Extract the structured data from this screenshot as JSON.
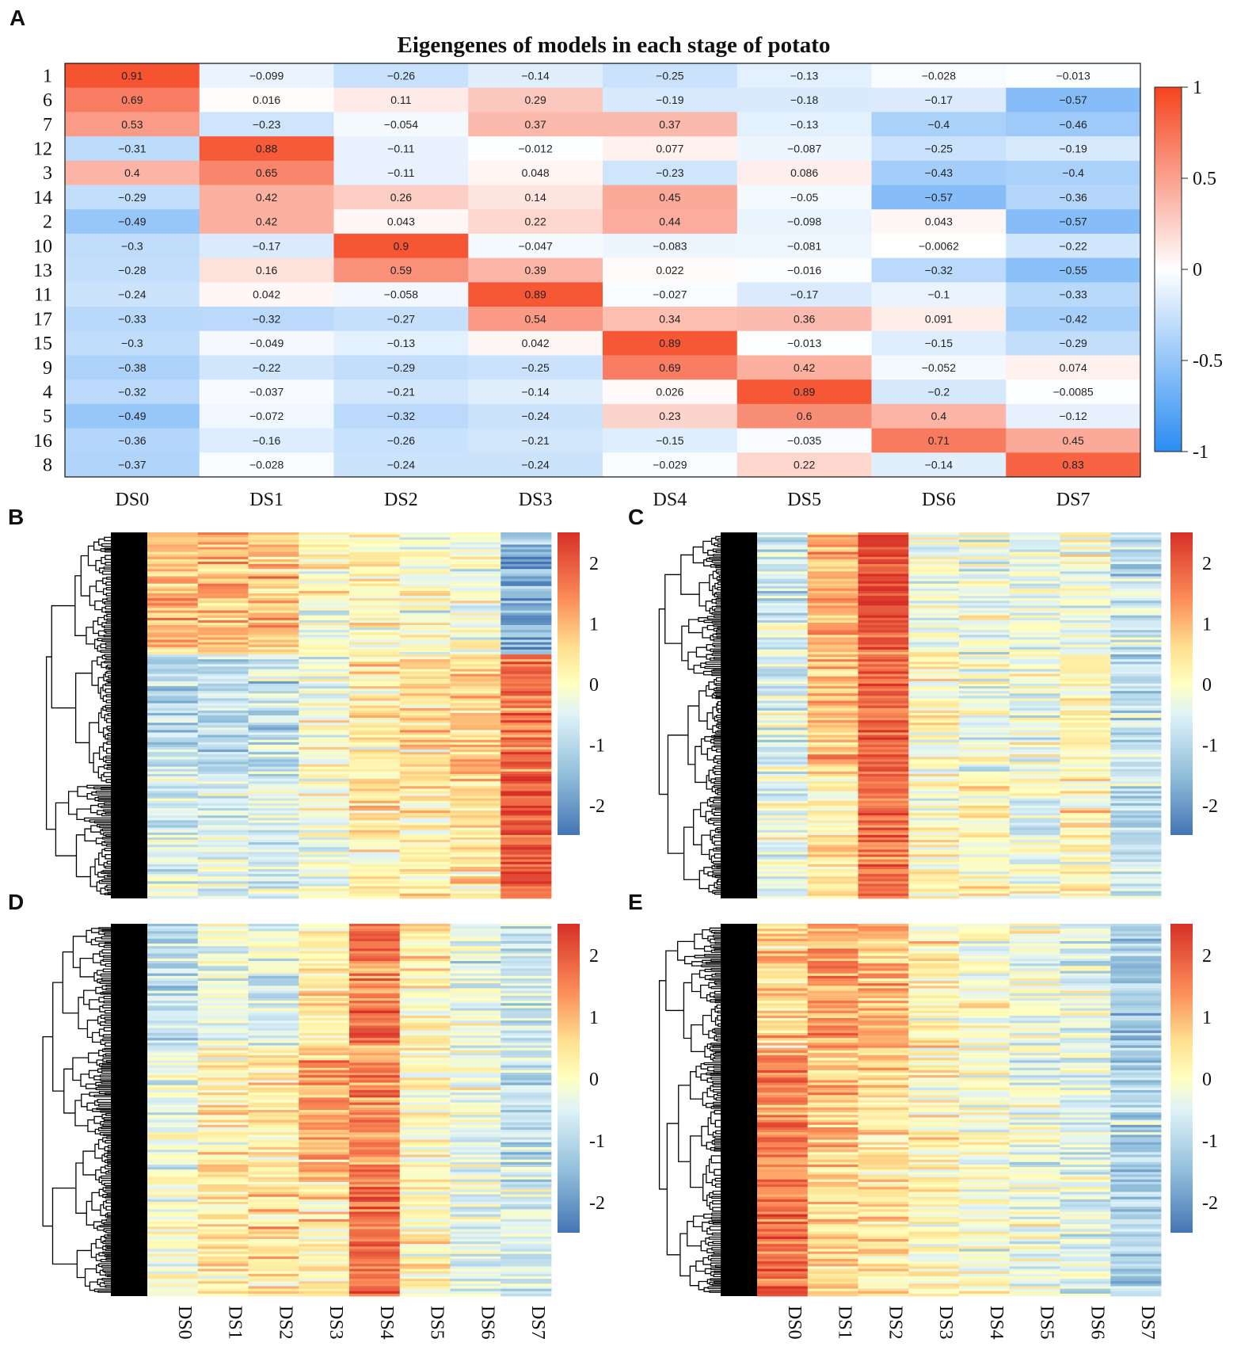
{
  "panel_letters": [
    "A",
    "B",
    "C",
    "D",
    "E"
  ],
  "chart_data": [
    {
      "type": "heatmap",
      "panel": "A",
      "title": "Eigengenes of models in each stage of potato",
      "columns": [
        "DS0",
        "DS1",
        "DS2",
        "DS3",
        "DS4",
        "DS5",
        "DS6",
        "DS7"
      ],
      "rows": [
        "1",
        "6",
        "7",
        "12",
        "3",
        "14",
        "2",
        "10",
        "13",
        "11",
        "17",
        "15",
        "9",
        "4",
        "5",
        "16",
        "8"
      ],
      "values": [
        [
          0.91,
          -0.099,
          -0.26,
          -0.14,
          -0.25,
          -0.13,
          -0.028,
          -0.013
        ],
        [
          0.69,
          0.016,
          0.11,
          0.29,
          -0.19,
          -0.18,
          -0.17,
          -0.57
        ],
        [
          0.53,
          -0.23,
          -0.054,
          0.37,
          0.37,
          -0.13,
          -0.4,
          -0.46
        ],
        [
          -0.31,
          0.88,
          -0.11,
          -0.012,
          0.077,
          -0.087,
          -0.25,
          -0.19
        ],
        [
          0.4,
          0.65,
          -0.11,
          0.048,
          -0.23,
          0.086,
          -0.43,
          -0.4
        ],
        [
          -0.29,
          0.42,
          0.26,
          0.14,
          0.45,
          -0.05,
          -0.57,
          -0.36
        ],
        [
          -0.49,
          0.42,
          0.043,
          0.22,
          0.44,
          -0.098,
          0.043,
          -0.57
        ],
        [
          -0.3,
          -0.17,
          0.9,
          -0.047,
          -0.083,
          -0.081,
          -0.0062,
          -0.22
        ],
        [
          -0.28,
          0.16,
          0.59,
          0.39,
          0.022,
          -0.016,
          -0.32,
          -0.55
        ],
        [
          -0.24,
          0.042,
          -0.058,
          0.89,
          -0.027,
          -0.17,
          -0.1,
          -0.33
        ],
        [
          -0.33,
          -0.32,
          -0.27,
          0.54,
          0.34,
          0.36,
          0.091,
          -0.42
        ],
        [
          -0.3,
          -0.049,
          -0.13,
          0.042,
          0.89,
          -0.013,
          -0.15,
          -0.29
        ],
        [
          -0.38,
          -0.22,
          -0.29,
          -0.25,
          0.69,
          0.42,
          -0.052,
          0.074
        ],
        [
          -0.32,
          -0.037,
          -0.21,
          -0.14,
          0.026,
          0.89,
          -0.2,
          -0.0085
        ],
        [
          -0.49,
          -0.072,
          -0.32,
          -0.24,
          0.23,
          0.6,
          0.4,
          -0.12
        ],
        [
          -0.36,
          -0.16,
          -0.26,
          -0.21,
          -0.15,
          -0.035,
          0.71,
          0.45
        ],
        [
          -0.37,
          -0.028,
          -0.24,
          -0.24,
          -0.029,
          0.22,
          -0.14,
          0.83
        ]
      ],
      "value_labels": [
        [
          "0.91",
          "−0.099",
          "−0.26",
          "−0.14",
          "−0.25",
          "−0.13",
          "−0.028",
          "−0.013"
        ],
        [
          "0.69",
          "0.016",
          "0.11",
          "0.29",
          "−0.19",
          "−0.18",
          "−0.17",
          "−0.57"
        ],
        [
          "0.53",
          "−0.23",
          "−0.054",
          "0.37",
          "0.37",
          "−0.13",
          "−0.4",
          "−0.46"
        ],
        [
          "−0.31",
          "0.88",
          "−0.11",
          "−0.012",
          "0.077",
          "−0.087",
          "−0.25",
          "−0.19"
        ],
        [
          "0.4",
          "0.65",
          "−0.11",
          "0.048",
          "−0.23",
          "0.086",
          "−0.43",
          "−0.4"
        ],
        [
          "−0.29",
          "0.42",
          "0.26",
          "0.14",
          "0.45",
          "−0.05",
          "−0.57",
          "−0.36"
        ],
        [
          "−0.49",
          "0.42",
          "0.043",
          "0.22",
          "0.44",
          "−0.098",
          "0.043",
          "−0.57"
        ],
        [
          "−0.3",
          "−0.17",
          "0.9",
          "−0.047",
          "−0.083",
          "−0.081",
          "−0.0062",
          "−0.22"
        ],
        [
          "−0.28",
          "0.16",
          "0.59",
          "0.39",
          "0.022",
          "−0.016",
          "−0.32",
          "−0.55"
        ],
        [
          "−0.24",
          "0.042",
          "−0.058",
          "0.89",
          "−0.027",
          "−0.17",
          "−0.1",
          "−0.33"
        ],
        [
          "−0.33",
          "−0.32",
          "−0.27",
          "0.54",
          "0.34",
          "0.36",
          "0.091",
          "−0.42"
        ],
        [
          "−0.3",
          "−0.049",
          "−0.13",
          "0.042",
          "0.89",
          "−0.013",
          "−0.15",
          "−0.29"
        ],
        [
          "−0.38",
          "−0.22",
          "−0.29",
          "−0.25",
          "0.69",
          "0.42",
          "−0.052",
          "0.074"
        ],
        [
          "−0.32",
          "−0.037",
          "−0.21",
          "−0.14",
          "0.026",
          "0.89",
          "−0.2",
          "−0.0085"
        ],
        [
          "−0.49",
          "−0.072",
          "−0.32",
          "−0.24",
          "0.23",
          "0.6",
          "0.4",
          "−0.12"
        ],
        [
          "−0.36",
          "−0.16",
          "−0.26",
          "−0.21",
          "−0.15",
          "−0.035",
          "0.71",
          "0.45"
        ],
        [
          "−0.37",
          "−0.028",
          "−0.24",
          "−0.24",
          "−0.029",
          "0.22",
          "−0.14",
          "0.83"
        ]
      ],
      "colorbar": {
        "range": [
          -1,
          1
        ],
        "ticks": [
          1,
          0.5,
          0,
          -0.5,
          -1
        ],
        "tick_labels": [
          "1",
          "0.5",
          "0",
          "-0.5",
          "-1"
        ],
        "colors": {
          "low": "#2B8CF2",
          "mid": "#FFFFFF",
          "high": "#F5431D"
        }
      }
    },
    {
      "type": "heatmap",
      "panel": "B",
      "columns": [
        "DS0",
        "DS1",
        "DS2",
        "DS3",
        "DS4",
        "DS5",
        "DS6",
        "DS7"
      ],
      "show_column_labels": false,
      "dendrogram": "left",
      "column_means": [
        [
          0.9,
          0.9,
          0.8,
          0.0,
          0.1,
          -0.1,
          -0.2,
          -1.6
        ],
        [
          -0.9,
          -0.9,
          -0.8,
          -0.1,
          0.3,
          0.5,
          0.7,
          1.6
        ],
        [
          -0.6,
          -0.6,
          -0.5,
          -0.2,
          0.2,
          0.2,
          0.5,
          2.0
        ]
      ],
      "colorbar": {
        "range": [
          -2.5,
          2.5
        ],
        "ticks": [
          2,
          1,
          0,
          -1,
          -2
        ],
        "tick_labels": [
          "2",
          "1",
          "0",
          "-1",
          "-2"
        ]
      }
    },
    {
      "type": "heatmap",
      "panel": "C",
      "columns": [
        "DS0",
        "DS1",
        "DS2",
        "DS3",
        "DS4",
        "DS5",
        "DS6",
        "DS7"
      ],
      "show_column_labels": false,
      "dendrogram": "left",
      "column_means": [
        [
          -0.6,
          1.2,
          2.1,
          -0.3,
          -0.4,
          -0.3,
          -0.2,
          -0.8
        ],
        [
          -0.5,
          0.9,
          1.9,
          0.0,
          -0.2,
          -0.3,
          0.1,
          -0.9
        ],
        [
          -0.4,
          0.4,
          1.8,
          0.1,
          0.0,
          -0.3,
          0.2,
          -0.8
        ]
      ],
      "colorbar": {
        "range": [
          -2.5,
          2.5
        ],
        "ticks": [
          2,
          1,
          0,
          -1,
          -2
        ],
        "tick_labels": [
          "2",
          "1",
          "0",
          "-1",
          "-2"
        ]
      }
    },
    {
      "type": "heatmap",
      "panel": "D",
      "columns": [
        "DS0",
        "DS1",
        "DS2",
        "DS3",
        "DS4",
        "DS5",
        "DS6",
        "DS7"
      ],
      "show_column_labels": true,
      "dendrogram": "left",
      "column_means": [
        [
          -0.9,
          -0.4,
          -0.4,
          0.3,
          1.6,
          0.2,
          -0.4,
          -0.7
        ],
        [
          -0.3,
          0.3,
          0.4,
          1.1,
          1.5,
          0.0,
          -0.3,
          -0.8
        ],
        [
          0.0,
          0.3,
          0.5,
          0.3,
          1.9,
          0.1,
          -0.5,
          -0.6
        ]
      ],
      "colorbar": {
        "range": [
          -2.5,
          2.5
        ],
        "ticks": [
          2,
          1,
          0,
          -1,
          -2
        ],
        "tick_labels": [
          "2",
          "1",
          "0",
          "-1",
          "-2"
        ]
      }
    },
    {
      "type": "heatmap",
      "panel": "E",
      "columns": [
        "DS0",
        "DS1",
        "DS2",
        "DS3",
        "DS4",
        "DS5",
        "DS6",
        "DS7"
      ],
      "show_column_labels": true,
      "dendrogram": "left",
      "column_means": [
        [
          0.6,
          1.2,
          0.9,
          0.1,
          0.0,
          -0.2,
          -0.4,
          -1.3
        ],
        [
          1.5,
          0.9,
          0.5,
          0.1,
          -0.1,
          -0.3,
          -0.5,
          -1.1
        ],
        [
          1.7,
          0.6,
          0.4,
          0.2,
          -0.1,
          -0.3,
          -0.5,
          -1.0
        ]
      ],
      "colorbar": {
        "range": [
          -2.5,
          2.5
        ],
        "ticks": [
          2,
          1,
          0,
          -1,
          -2
        ],
        "tick_labels": [
          "2",
          "1",
          "0",
          "-1",
          "-2"
        ]
      }
    }
  ]
}
